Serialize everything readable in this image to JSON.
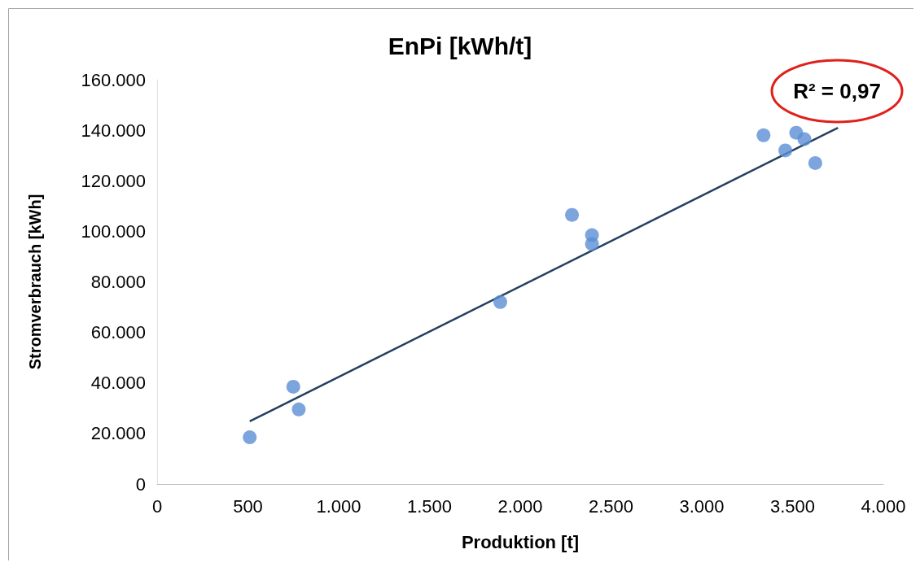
{
  "chart_data": {
    "type": "scatter",
    "title": "EnPi [kWh/t]",
    "xlabel": "Produktion [t]",
    "ylabel": "Stromverbrauch [kWh]",
    "xlim": [
      0,
      4000
    ],
    "xticks": [
      0,
      500,
      {
        "value": 1000,
        "label": "1.000"
      },
      {
        "value": 1500,
        "label": "1.500"
      },
      {
        "value": 2000,
        "label": "2.000"
      },
      {
        "value": 2500,
        "label": "2.500"
      },
      {
        "value": 3000,
        "label": "3.000"
      },
      {
        "value": 3500,
        "label": "3.500"
      },
      {
        "value": 4000,
        "label": "4.000"
      }
    ],
    "ylim": [
      0,
      160000
    ],
    "yticks": [
      0,
      {
        "value": 20000,
        "label": "20.000"
      },
      {
        "value": 40000,
        "label": "40.000"
      },
      {
        "value": 60000,
        "label": "60.000"
      },
      {
        "value": 80000,
        "label": "80.000"
      },
      {
        "value": 100000,
        "label": "100.000"
      },
      {
        "value": 120000,
        "label": "120.000"
      },
      {
        "value": 140000,
        "label": "140.000"
      },
      {
        "value": 160000,
        "label": "160.000"
      }
    ],
    "grid": false,
    "series": [
      {
        "marker": "circle",
        "color": "#5b8fd4",
        "x": [
          510,
          750,
          780,
          1890,
          2285,
          2395,
          2395,
          3340,
          3460,
          3520,
          3565,
          3625
        ],
        "values": [
          18500,
          38500,
          29500,
          72000,
          106500,
          98500,
          95000,
          138000,
          132000,
          139000,
          136500,
          127000
        ]
      },
      {
        "type": "line",
        "color": "#243f60",
        "line_style": "solid",
        "x": [
          510,
          3750
        ],
        "values": [
          24800,
          141000
        ]
      }
    ],
    "annotations": [
      "R² = 0,97"
    ]
  }
}
